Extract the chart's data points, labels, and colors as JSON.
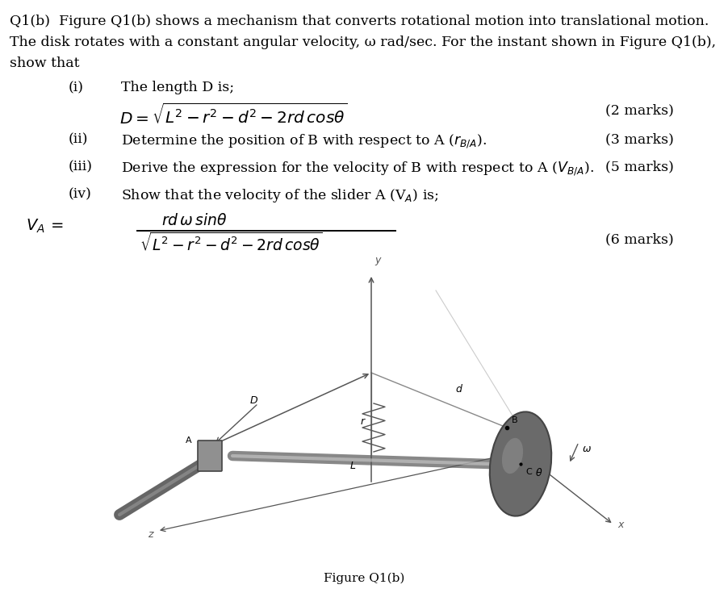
{
  "title_line1": "Q1(b)  Figure Q1(b) shows a mechanism that converts rotational motion into translational motion.",
  "title_line2": "The disk rotates with a constant angular velocity, ω rad/sec. For the instant shown in Figure Q1(b),",
  "title_line3": "show that",
  "item_i_label": "(i)",
  "item_i_text": "The length D is;",
  "item_i_marks": "(2 marks)",
  "item_ii_label": "(ii)",
  "item_ii_text": "Determine the position of B with respect to A ($r_{B/A}$).",
  "item_ii_marks": "(3 marks)",
  "item_iii_label": "(iii)",
  "item_iii_text": "Derive the expression for the velocity of B with respect to A ($V_{B/A}$).",
  "item_iii_marks": "(5 marks)",
  "item_iv_label": "(iv)",
  "item_iv_text": "Show that the velocity of the slider A (V$_A$) is;",
  "item_iv_marks": "(6 marks)",
  "fig_caption": "Figure Q1(b)",
  "bg_color": "#ffffff",
  "text_color": "#000000"
}
